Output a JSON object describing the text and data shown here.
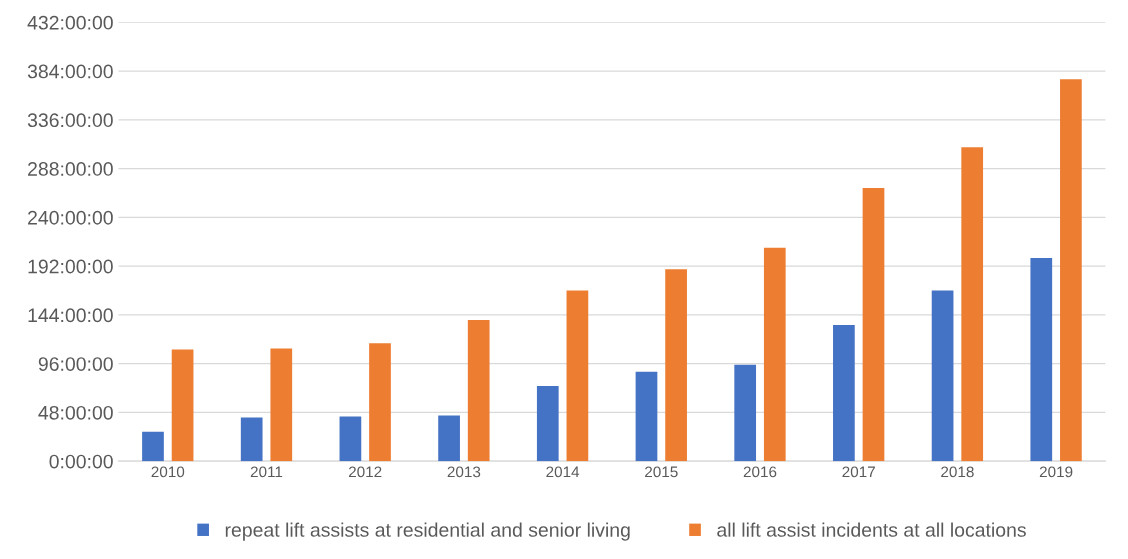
{
  "chart_data": {
    "type": "bar",
    "categories": [
      "2010",
      "2011",
      "2012",
      "2013",
      "2014",
      "2015",
      "2016",
      "2017",
      "2018",
      "2019"
    ],
    "series": [
      {
        "name": "repeat lift assists at residential and senior living",
        "color": "#4472c4",
        "values": [
          29,
          43,
          44,
          45,
          74,
          88,
          95,
          134,
          168,
          200
        ]
      },
      {
        "name": "all lift assist incidents at all locations",
        "color": "#ed7d31",
        "values": [
          110,
          111,
          116,
          139,
          168,
          189,
          210,
          269,
          309,
          376
        ]
      }
    ],
    "ylim": [
      0,
      432
    ],
    "yticks": [
      {
        "value": 0,
        "label": "0:00:00"
      },
      {
        "value": 48,
        "label": "48:00:00"
      },
      {
        "value": 96,
        "label": "96:00:00"
      },
      {
        "value": 144,
        "label": "144:00:00"
      },
      {
        "value": 192,
        "label": "192:00:00"
      },
      {
        "value": 240,
        "label": "240:00:00"
      },
      {
        "value": 288,
        "label": "288:00:00"
      },
      {
        "value": 336,
        "label": "336:00:00"
      },
      {
        "value": 384,
        "label": "384:00:00"
      },
      {
        "value": 432,
        "label": "432:00:00"
      }
    ],
    "grid": "y",
    "legend": "bottom"
  }
}
